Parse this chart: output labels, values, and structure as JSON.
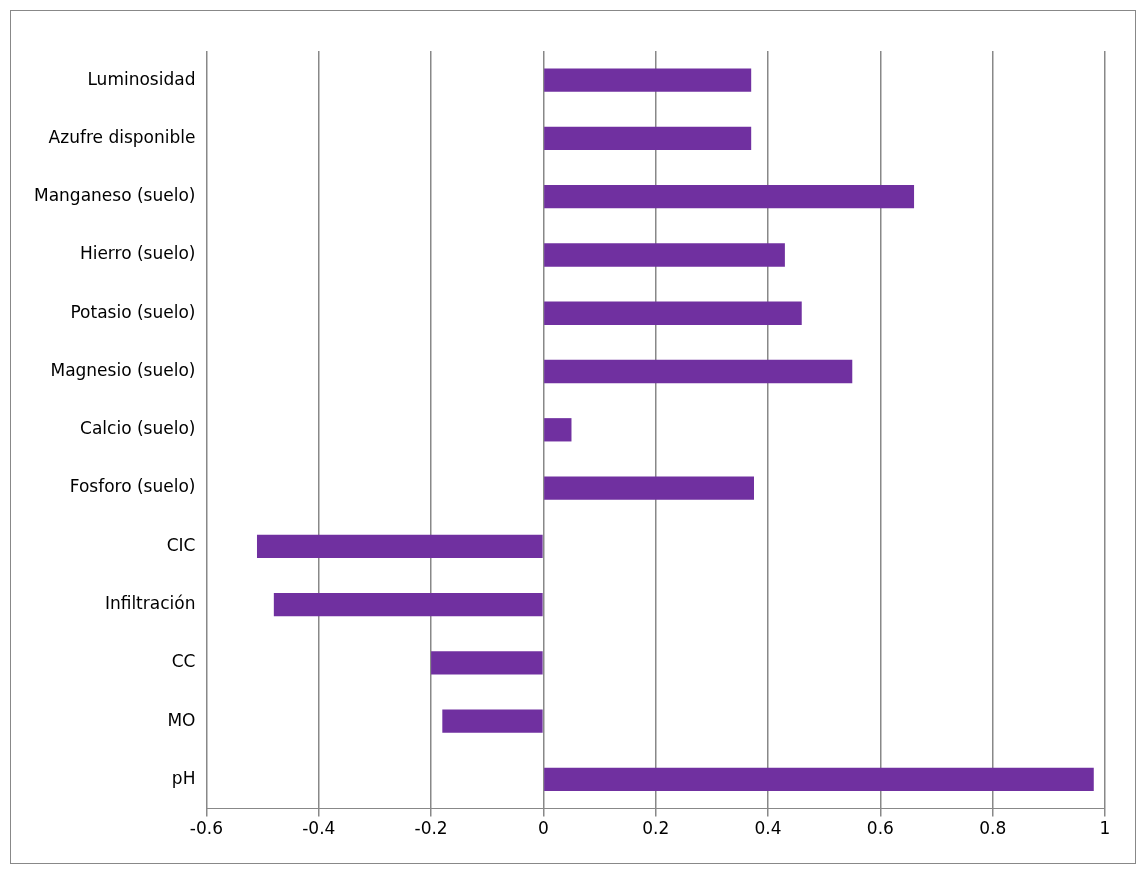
{
  "chart_data": {
    "type": "bar",
    "orientation": "horizontal",
    "categories": [
      "Luminosidad",
      "Azufre disponible",
      "Manganeso (suelo)",
      "Hierro (suelo)",
      "Potasio (suelo)",
      "Magnesio (suelo)",
      "Calcio (suelo)",
      "Fosforo (suelo)",
      "CIC",
      "Infiltración",
      "CC",
      "MO",
      "pH"
    ],
    "values": [
      0.37,
      0.37,
      0.66,
      0.43,
      0.46,
      0.55,
      0.05,
      0.375,
      -0.51,
      -0.48,
      -0.2,
      -0.18,
      0.98
    ],
    "color": "#7030a0",
    "xlim": [
      -0.6,
      1
    ],
    "xticks": [
      -0.6,
      -0.4,
      -0.2,
      0,
      0.2,
      0.4,
      0.6,
      0.8,
      1
    ],
    "grid": "x",
    "legend": false
  }
}
